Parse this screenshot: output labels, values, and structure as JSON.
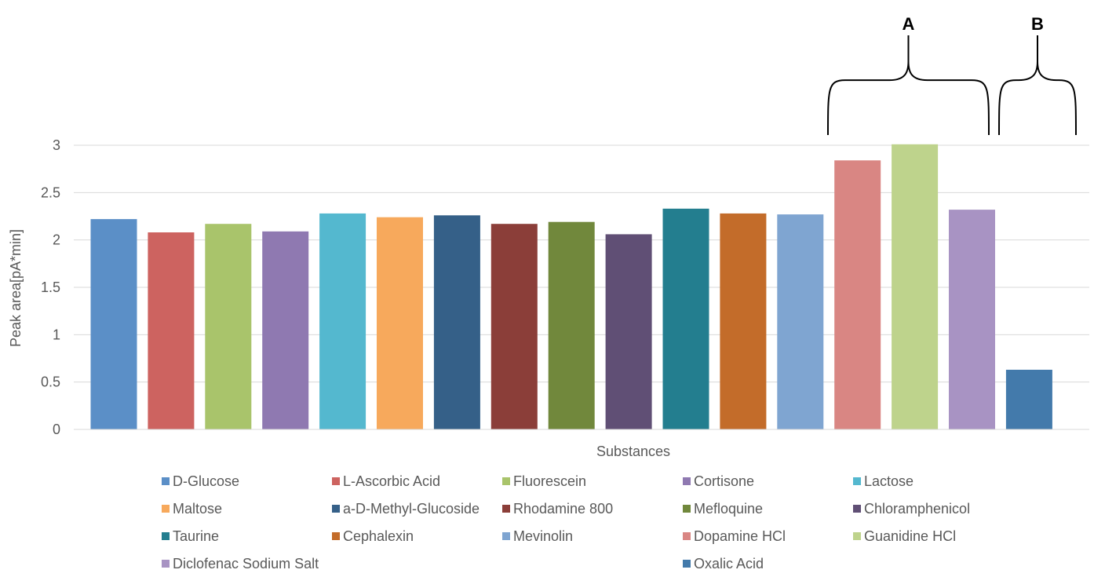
{
  "chart_data": {
    "type": "bar",
    "title": "",
    "xlabel": "Substances",
    "ylabel": "Peak area[pA*min]",
    "ylim": [
      0,
      3
    ],
    "yticks": [
      "0",
      "0.5",
      "1",
      "1.5",
      "2",
      "2.5",
      "3"
    ],
    "grid": true,
    "legend_position": "bottom",
    "categories": [
      "D-Glucose",
      "L-Ascorbic Acid",
      "Fluorescein",
      "Cortisone",
      "Lactose",
      "Maltose",
      "a-D-Methyl-Glucoside",
      "Rhodamine 800",
      "Mefloquine",
      "Chloramphenicol",
      "Taurine",
      "Cephalexin",
      "Mevinolin",
      "Dopamine HCl",
      "Guanidine HCl",
      "Diclofenac Sodium Salt",
      "Oxalic Acid"
    ],
    "values": [
      2.22,
      2.08,
      2.17,
      2.09,
      2.28,
      2.24,
      2.26,
      2.17,
      2.19,
      2.06,
      2.33,
      2.28,
      2.27,
      2.84,
      3.01,
      2.32,
      0.63
    ],
    "colors": [
      "#5B8FC7",
      "#CD6360",
      "#A9C46B",
      "#8F79B1",
      "#54B8CF",
      "#F7A95C",
      "#356088",
      "#8B3E39",
      "#71883C",
      "#604F75",
      "#237E8F",
      "#C36C2A",
      "#7FA5D1",
      "#D98683",
      "#BED38C",
      "#A893C3",
      "#437AAB"
    ],
    "annotations": [
      {
        "label": "A",
        "categories": [
          "Dopamine HCl",
          "Guanidine HCl",
          "Diclofenac Sodium Salt"
        ]
      },
      {
        "label": "B",
        "categories": [
          "Oxalic Acid"
        ]
      }
    ]
  }
}
